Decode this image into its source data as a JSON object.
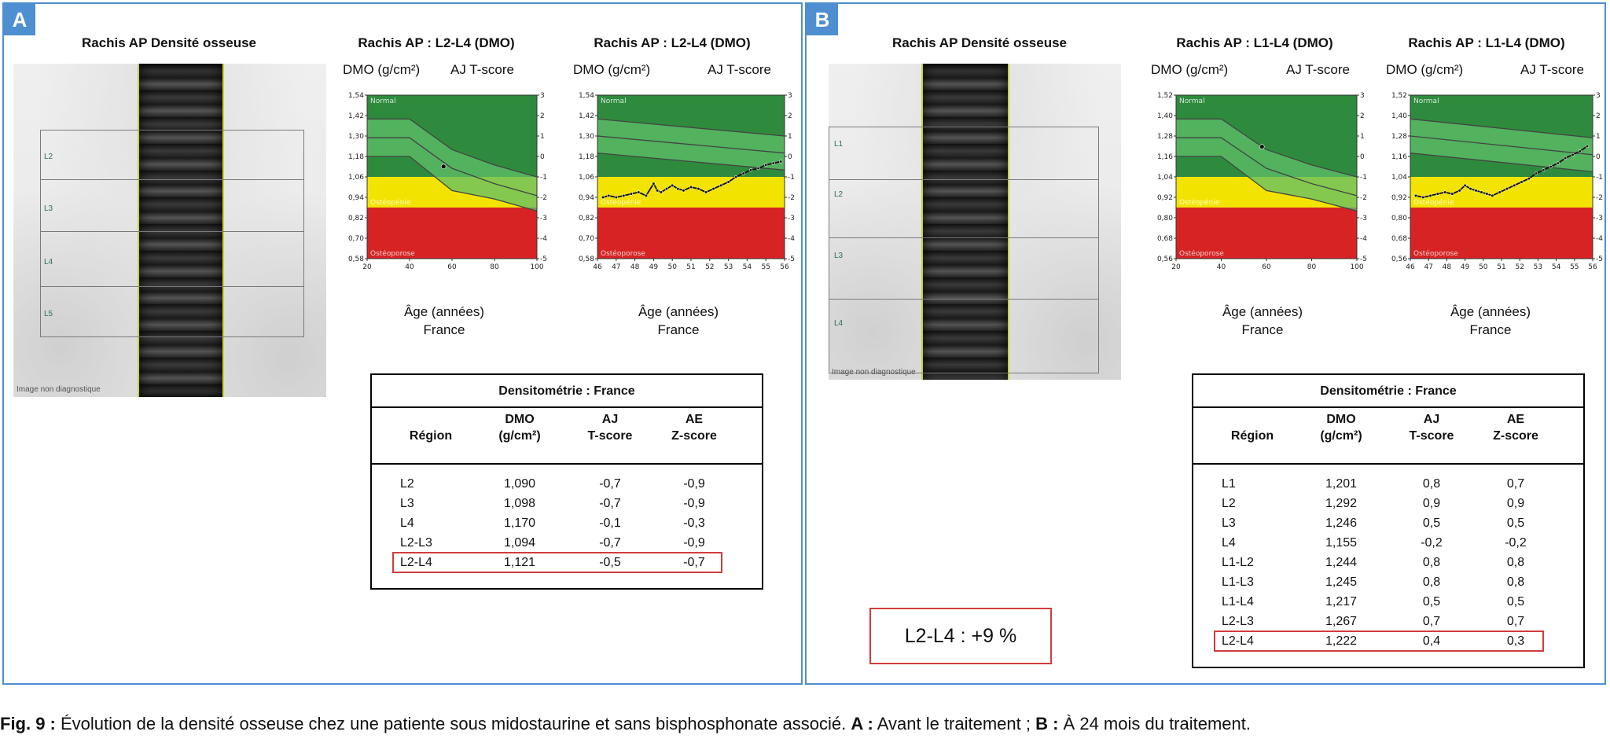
{
  "panels": [
    {
      "letter": "A",
      "scan": {
        "title": "Rachis AP Densité osseuse",
        "vertebra_labels": [
          "L2",
          "L3",
          "L4",
          "L5"
        ],
        "caption": "Image non diagnostique"
      },
      "charts": [
        {
          "title": "Rachis AP : L2-L4 (DMO)",
          "ylabel": "DMO (g/cm²)",
          "y2label": "AJ T-score",
          "xlabel": "Âge (années)",
          "xsublabel": "France",
          "y_ticks": [
            "1,54",
            "1,42",
            "1,30",
            "1,18",
            "1,06",
            "0,94",
            "0,82",
            "0,70",
            "0,58"
          ],
          "t_ticks": [
            "3",
            "2",
            "1",
            "0",
            "-1",
            "-2",
            "-3",
            "-4",
            "-5"
          ],
          "x_ticks": [
            "20",
            "40",
            "60",
            "80",
            "100"
          ],
          "zones": {
            "normal": "Normal",
            "osteopenie": "Ostéopénie",
            "osteoporose": "Ostéoporose"
          }
        },
        {
          "title": "Rachis AP : L2-L4 (DMO)",
          "ylabel": "DMO (g/cm²)",
          "y2label": "AJ T-score",
          "xlabel": "Âge (années)",
          "xsublabel": "France",
          "y_ticks": [
            "1,54",
            "1,42",
            "1,30",
            "1,18",
            "1,06",
            "0,94",
            "0,82",
            "0,70",
            "0,58"
          ],
          "t_ticks": [
            "3",
            "2",
            "1",
            "0",
            "-1",
            "-2",
            "-3",
            "-4",
            "-5"
          ],
          "x_ticks": [
            "46",
            "47",
            "48",
            "49",
            "50",
            "51",
            "52",
            "53",
            "54",
            "55",
            "56"
          ],
          "zones": {
            "normal": "Normal",
            "osteopenie": "Ostéopénie",
            "osteoporose": "Ostéoporose"
          }
        }
      ],
      "table": {
        "title": "Densitométrie : France",
        "headers": [
          {
            "line1": "",
            "line2": "Région"
          },
          {
            "line1": "DMO",
            "line2": "(g/cm²)"
          },
          {
            "line1": "AJ",
            "line2": "T-score"
          },
          {
            "line1": "AE",
            "line2": "Z-score"
          }
        ],
        "rows": [
          [
            "L2",
            "1,090",
            "-0,7",
            "-0,9"
          ],
          [
            "L3",
            "1,098",
            "-0,7",
            "-0,9"
          ],
          [
            "L4",
            "1,170",
            "-0,1",
            "-0,3"
          ],
          [
            "L2-L3",
            "1,094",
            "-0,7",
            "-0,9"
          ],
          [
            "L2-L4",
            "1,121",
            "-0,5",
            "-0,7"
          ]
        ]
      }
    },
    {
      "letter": "B",
      "scan": {
        "title": "Rachis AP Densité osseuse",
        "vertebra_labels": [
          "L1",
          "L2",
          "L3",
          "L4"
        ],
        "caption": "Image non diagnostique"
      },
      "charts": [
        {
          "title": "Rachis AP : L1-L4 (DMO)",
          "ylabel": "DMO (g/cm²)",
          "y2label": "AJ T-score",
          "xlabel": "Âge (années)",
          "xsublabel": "France",
          "y_ticks": [
            "1,52",
            "1,40",
            "1,28",
            "1,16",
            "1,04",
            "0,92",
            "0,80",
            "0,68",
            "0,56"
          ],
          "t_ticks": [
            "3",
            "2",
            "1",
            "0",
            "-1",
            "-2",
            "-3",
            "-4",
            "-5"
          ],
          "x_ticks": [
            "20",
            "40",
            "60",
            "80",
            "100"
          ],
          "zones": {
            "normal": "Normal",
            "osteopenie": "Ostéopénie",
            "osteoporose": "Ostéoporose"
          }
        },
        {
          "title": "Rachis AP : L1-L4 (DMO)",
          "ylabel": "DMO (g/cm²)",
          "y2label": "AJ T-score",
          "xlabel": "Âge (années)",
          "xsublabel": "France",
          "y_ticks": [
            "1,52",
            "1,40",
            "1,28",
            "1,16",
            "1,04",
            "0,92",
            "0,80",
            "0,68",
            "0,56"
          ],
          "t_ticks": [
            "3",
            "2",
            "1",
            "0",
            "-1",
            "-2",
            "-3",
            "-4",
            "-5"
          ],
          "x_ticks": [
            "46",
            "47",
            "48",
            "49",
            "50",
            "51",
            "52",
            "53",
            "54",
            "55",
            "56"
          ],
          "zones": {
            "normal": "Normal",
            "osteopenie": "Ostéopénie",
            "osteoporose": "Ostéoporose"
          }
        }
      ],
      "table": {
        "title": "Densitométrie : France",
        "headers": [
          {
            "line1": "",
            "line2": "Région"
          },
          {
            "line1": "DMO",
            "line2": "(g/cm²)"
          },
          {
            "line1": "AJ",
            "line2": "T-score"
          },
          {
            "line1": "AE",
            "line2": "Z-score"
          }
        ],
        "rows": [
          [
            "L1",
            "1,201",
            "0,8",
            "0,7"
          ],
          [
            "L2",
            "1,292",
            "0,9",
            "0,9"
          ],
          [
            "L3",
            "1,246",
            "0,5",
            "0,5"
          ],
          [
            "L4",
            "1,155",
            "-0,2",
            "-0,2"
          ],
          [
            "L1-L2",
            "1,244",
            "0,8",
            "0,8"
          ],
          [
            "L1-L3",
            "1,245",
            "0,8",
            "0,8"
          ],
          [
            "L1-L4",
            "1,217",
            "0,5",
            "0,5"
          ],
          [
            "L2-L3",
            "1,267",
            "0,7",
            "0,7"
          ],
          [
            "L2-L4",
            "1,222",
            "0,4",
            "0,3"
          ]
        ]
      },
      "delta": "L2-L4 : +9 %"
    }
  ],
  "caption": {
    "fig_label": "Fig. 9 :",
    "text": " Évolution de la densité osseuse chez une patiente sous midostaurine et sans bisphosphonate associé. ",
    "a_label": "A :",
    "a_text": " Avant le traitement ; ",
    "b_label": "B :",
    "b_text": " À 24 mois du traitement."
  },
  "chart_data": [
    {
      "type": "line",
      "panel": "A",
      "title": "Rachis AP : L2-L4 (DMO)",
      "xlabel": "Âge (années)",
      "ylabel": "DMO (g/cm²)",
      "xlim": [
        20,
        100
      ],
      "ylim": [
        0.58,
        1.54
      ],
      "reference_curves": {
        "x": [
          20,
          40,
          60,
          80,
          100
        ],
        "upper": [
          1.4,
          1.4,
          1.22,
          1.13,
          1.06
        ],
        "middle": [
          1.29,
          1.29,
          1.11,
          1.02,
          0.95
        ],
        "lower": [
          1.18,
          1.18,
          0.98,
          0.93,
          0.86
        ]
      },
      "series": [
        {
          "x": [
            56
          ],
          "values": [
            1.121
          ]
        }
      ]
    },
    {
      "type": "line",
      "panel": "A",
      "title": "Rachis AP : L2-L4 (DMO)",
      "xlabel": "Âge (années)",
      "ylabel": "DMO (g/cm²)",
      "xlim": [
        46,
        56
      ],
      "ylim": [
        0.58,
        1.54
      ],
      "reference_curves": {
        "x": [
          46,
          56
        ],
        "upper": [
          1.4,
          1.3
        ],
        "middle": [
          1.3,
          1.2
        ],
        "lower": [
          1.2,
          1.1
        ]
      },
      "series": [
        {
          "x": [
            46.3,
            46.6,
            47.0,
            47.4,
            47.8,
            48.2,
            48.6,
            49.0,
            49.2,
            49.4,
            49.7,
            50.0,
            50.3,
            50.6,
            51.0,
            51.4,
            51.8,
            52.2,
            52.6,
            53.0,
            53.4,
            53.8,
            54.2,
            54.6,
            55.0,
            55.4,
            55.8
          ],
          "values": [
            0.94,
            0.95,
            0.94,
            0.95,
            0.96,
            0.97,
            0.95,
            1.02,
            0.98,
            0.97,
            0.99,
            1.01,
            0.99,
            0.98,
            1.0,
            0.99,
            0.97,
            0.99,
            1.01,
            1.03,
            1.06,
            1.08,
            1.1,
            1.11,
            1.13,
            1.14,
            1.15
          ]
        }
      ]
    },
    {
      "type": "line",
      "panel": "B",
      "title": "Rachis AP : L1-L4 (DMO)",
      "xlabel": "Âge (années)",
      "ylabel": "DMO (g/cm²)",
      "xlim": [
        20,
        100
      ],
      "ylim": [
        0.56,
        1.52
      ],
      "reference_curves": {
        "x": [
          20,
          40,
          60,
          80,
          100
        ],
        "upper": [
          1.38,
          1.38,
          1.2,
          1.11,
          1.04
        ],
        "middle": [
          1.27,
          1.27,
          1.09,
          1.0,
          0.93
        ],
        "lower": [
          1.16,
          1.16,
          0.96,
          0.91,
          0.84
        ]
      },
      "series": [
        {
          "x": [
            58
          ],
          "values": [
            1.217
          ]
        }
      ]
    },
    {
      "type": "line",
      "panel": "B",
      "title": "Rachis AP : L1-L4 (DMO)",
      "xlabel": "Âge (années)",
      "ylabel": "DMO (g/cm²)",
      "xlim": [
        46,
        56
      ],
      "ylim": [
        0.56,
        1.52
      ],
      "reference_curves": {
        "x": [
          46,
          56
        ],
        "upper": [
          1.38,
          1.27
        ],
        "middle": [
          1.28,
          1.17
        ],
        "lower": [
          1.18,
          1.07
        ]
      },
      "series": [
        {
          "x": [
            46.3,
            46.7,
            47.1,
            47.5,
            47.9,
            48.3,
            48.7,
            49.0,
            49.3,
            49.6,
            49.9,
            50.2,
            50.5,
            50.9,
            51.3,
            51.7,
            52.1,
            52.5,
            52.9,
            53.3,
            53.7,
            54.1,
            54.5,
            54.9,
            55.3,
            55.7
          ],
          "values": [
            0.93,
            0.92,
            0.93,
            0.94,
            0.95,
            0.94,
            0.96,
            0.99,
            0.97,
            0.96,
            0.95,
            0.94,
            0.93,
            0.95,
            0.97,
            0.99,
            1.01,
            1.03,
            1.06,
            1.08,
            1.1,
            1.12,
            1.15,
            1.17,
            1.19,
            1.22
          ]
        }
      ]
    }
  ]
}
